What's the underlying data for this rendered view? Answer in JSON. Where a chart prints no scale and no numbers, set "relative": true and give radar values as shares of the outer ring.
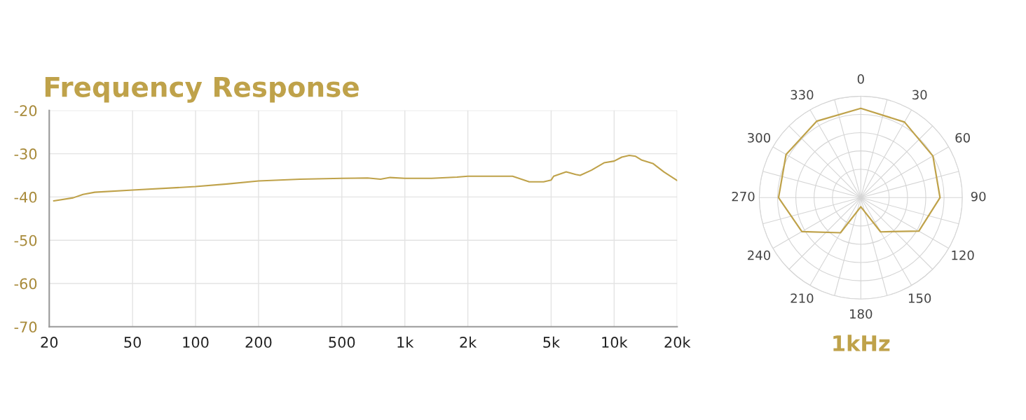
{
  "chart_data": [
    {
      "type": "line",
      "title": "Frequency Response",
      "x": [
        21,
        26,
        29,
        33,
        50,
        100,
        141,
        200,
        316,
        500,
        663,
        765,
        850,
        1000,
        1342,
        1775,
        2000,
        3270,
        3930,
        4600,
        5000,
        5140,
        5900,
        6550,
        6880,
        7790,
        8950,
        10000,
        10870,
        11810,
        12660,
        13570,
        15370,
        17290,
        20000
      ],
      "series": [
        {
          "color": "#bfa24a",
          "values": [
            -40.9,
            -40.2,
            -39.4,
            -38.9,
            -38.4,
            -37.6,
            -37.0,
            -36.3,
            -35.9,
            -35.7,
            -35.6,
            -35.9,
            -35.5,
            -35.7,
            -35.7,
            -35.4,
            -35.2,
            -35.2,
            -36.5,
            -36.5,
            -36.1,
            -35.2,
            -34.2,
            -34.8,
            -35.0,
            -33.8,
            -32.1,
            -31.7,
            -30.8,
            -30.4,
            -30.6,
            -31.5,
            -32.3,
            -34.2,
            -36.2
          ]
        }
      ],
      "xlim": [
        20,
        20000
      ],
      "xticks": [
        20,
        50,
        100,
        200,
        500,
        {
          "value": 1000,
          "label": "1k"
        },
        {
          "value": 2000,
          "label": "2k"
        },
        {
          "value": 5000,
          "label": "5k"
        },
        {
          "value": 10000,
          "label": "10k"
        },
        {
          "value": 20000,
          "label": "20k"
        }
      ],
      "ylim": [
        -70,
        -20
      ],
      "yticks": [
        -70,
        -60,
        -50,
        -40,
        -30,
        -20
      ],
      "grid": true,
      "log": "x"
    },
    {
      "type": "radar",
      "xlabel": "1kHz",
      "relative": true,
      "grid": true,
      "categories": [
        "0",
        "30",
        "60",
        "90",
        "120",
        "150",
        "180",
        "210",
        "240",
        "270",
        "300",
        "330"
      ],
      "series": [
        {
          "color": "#bfa24a",
          "values": [
            0.88,
            0.86,
            0.82,
            0.78,
            0.66,
            0.39,
            0.09,
            0.4,
            0.67,
            0.81,
            0.85,
            0.87
          ]
        }
      ]
    }
  ]
}
